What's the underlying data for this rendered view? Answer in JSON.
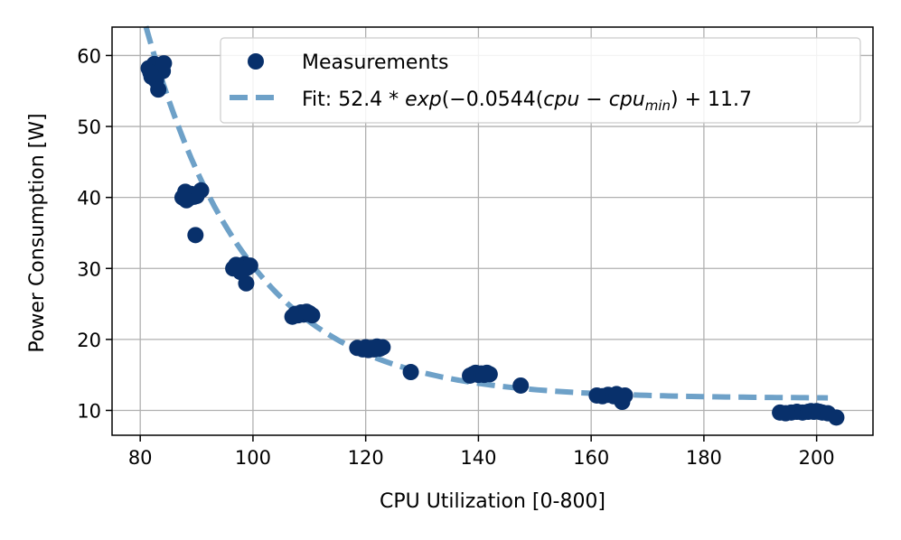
{
  "chart_data": {
    "type": "scatter",
    "title": "",
    "xlabel": "CPU Utilization [0-800]",
    "ylabel": "Power Consumption [W]",
    "xlim": [
      75,
      210
    ],
    "ylim": [
      6.5,
      64
    ],
    "xticks": [
      80,
      100,
      120,
      140,
      160,
      180,
      200
    ],
    "yticks": [
      10,
      20,
      30,
      40,
      50,
      60
    ],
    "grid": true,
    "legend_position": "top-right",
    "colors": {
      "points": "#08306b",
      "fit": "#6ea1c8",
      "grid": "#b0b0b0"
    },
    "series": [
      {
        "name": "Measurements",
        "kind": "scatter",
        "points": [
          [
            81.5,
            58.2
          ],
          [
            82.0,
            57.0
          ],
          [
            82.5,
            58.8
          ],
          [
            83.0,
            57.5
          ],
          [
            83.5,
            58.6
          ],
          [
            84.0,
            57.8
          ],
          [
            82.8,
            56.5
          ],
          [
            83.2,
            55.2
          ],
          [
            84.2,
            58.9
          ],
          [
            81.8,
            57.6
          ],
          [
            87.5,
            40.0
          ],
          [
            88.0,
            40.8
          ],
          [
            88.5,
            39.8
          ],
          [
            89.0,
            40.5
          ],
          [
            90.0,
            40.2
          ],
          [
            90.8,
            41.0
          ],
          [
            89.5,
            40.1
          ],
          [
            88.2,
            39.6
          ],
          [
            89.8,
            34.7
          ],
          [
            96.5,
            30.0
          ],
          [
            97.0,
            30.5
          ],
          [
            97.5,
            29.8
          ],
          [
            98.0,
            30.2
          ],
          [
            98.5,
            30.6
          ],
          [
            99.0,
            30.1
          ],
          [
            99.5,
            30.4
          ],
          [
            97.8,
            29.5
          ],
          [
            98.8,
            27.9
          ],
          [
            107.0,
            23.2
          ],
          [
            107.5,
            23.6
          ],
          [
            108.0,
            23.4
          ],
          [
            108.5,
            23.8
          ],
          [
            109.0,
            23.5
          ],
          [
            109.5,
            23.9
          ],
          [
            110.0,
            23.7
          ],
          [
            110.5,
            23.4
          ],
          [
            118.5,
            18.8
          ],
          [
            119.5,
            18.6
          ],
          [
            120.0,
            18.9
          ],
          [
            120.5,
            18.5
          ],
          [
            121.0,
            18.8
          ],
          [
            121.5,
            18.6
          ],
          [
            122.0,
            19.0
          ],
          [
            122.5,
            18.7
          ],
          [
            123.0,
            18.9
          ],
          [
            128.0,
            15.4
          ],
          [
            138.5,
            14.9
          ],
          [
            139.0,
            15.1
          ],
          [
            139.5,
            15.3
          ],
          [
            140.0,
            15.0
          ],
          [
            140.5,
            15.2
          ],
          [
            141.0,
            15.0
          ],
          [
            141.5,
            15.3
          ],
          [
            142.0,
            15.1
          ],
          [
            147.5,
            13.5
          ],
          [
            161.0,
            12.1
          ],
          [
            162.0,
            12.0
          ],
          [
            163.0,
            12.2
          ],
          [
            164.0,
            12.0
          ],
          [
            164.5,
            12.3
          ],
          [
            165.0,
            12.1
          ],
          [
            165.5,
            11.2
          ],
          [
            166.0,
            12.1
          ],
          [
            193.5,
            9.7
          ],
          [
            194.5,
            9.6
          ],
          [
            195.5,
            9.7
          ],
          [
            196.5,
            9.8
          ],
          [
            197.5,
            9.7
          ],
          [
            198.5,
            9.8
          ],
          [
            199.0,
            9.9
          ],
          [
            199.5,
            9.8
          ],
          [
            200.0,
            9.9
          ],
          [
            200.5,
            9.8
          ],
          [
            201.0,
            9.7
          ],
          [
            202.0,
            9.6
          ],
          [
            203.5,
            9.0
          ]
        ]
      },
      {
        "name": "Fit",
        "kind": "line",
        "function": "52.4*exp(-0.0544*(cpu-81))+11.7",
        "x_range": [
          81,
          202
        ]
      }
    ],
    "legend": {
      "measurements_label": "Measurements",
      "fit_prefix": "Fit: 52.4 * ",
      "fit_exp": "exp",
      "fit_mid1": "(−0.0544(",
      "fit_cpu": "cpu",
      "fit_minus": " − ",
      "fit_cpumin": "cpu",
      "fit_sub": "min",
      "fit_suffix": ") + 11.7"
    }
  }
}
